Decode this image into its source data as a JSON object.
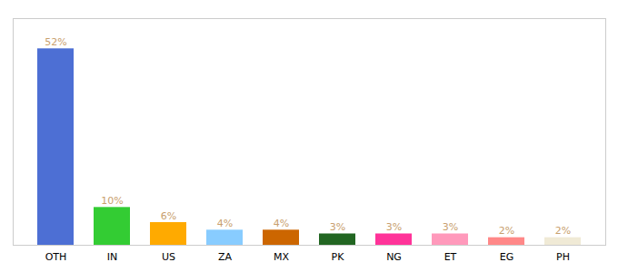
{
  "chart_data": {
    "type": "bar",
    "categories": [
      "OTH",
      "IN",
      "US",
      "ZA",
      "MX",
      "PK",
      "NG",
      "ET",
      "EG",
      "PH"
    ],
    "values": [
      52,
      10,
      6,
      4,
      4,
      3,
      3,
      3,
      2,
      2
    ],
    "value_labels": [
      "52%",
      "10%",
      "6%",
      "4%",
      "4%",
      "3%",
      "3%",
      "3%",
      "2%",
      "2%"
    ],
    "colors": [
      "#4d6fd4",
      "#33cc33",
      "#ffaa00",
      "#88ccff",
      "#cc6600",
      "#226622",
      "#ff3399",
      "#ff99bb",
      "#ff8888",
      "#f0ead6"
    ],
    "data_labels": true,
    "ylim": [
      0,
      60
    ],
    "tick_labels": "x"
  }
}
